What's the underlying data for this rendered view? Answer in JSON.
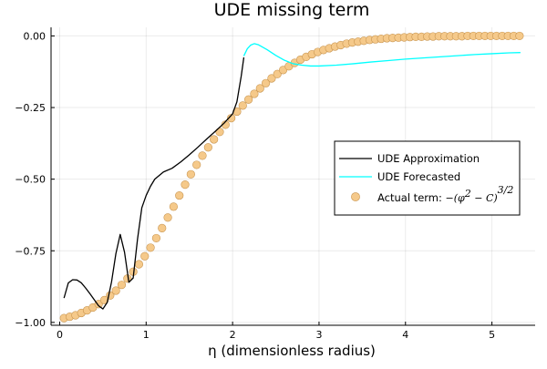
{
  "chart_data": {
    "type": "line",
    "title": "UDE missing term",
    "xlabel": "η (dimensionless radius)",
    "ylabel": "",
    "xlim": [
      -0.1,
      5.5
    ],
    "ylim": [
      -1.01,
      0.03
    ],
    "x_ticks": [
      0,
      1,
      2,
      3,
      4,
      5
    ],
    "y_ticks": [
      0.0,
      -0.25,
      -0.5,
      -0.75,
      -1.0
    ],
    "x_tick_labels": [
      "0",
      "1",
      "2",
      "3",
      "4",
      "5"
    ],
    "y_tick_labels": [
      "0.00",
      "−0.25",
      "−0.50",
      "−0.75",
      "−1.00"
    ],
    "grid": true,
    "legend_position": "right-middle",
    "colors": {
      "approximation": "#000000",
      "forecasted": "#00ffff",
      "actual_fill": "#f5c98a",
      "actual_edge": "#c89550"
    },
    "series": [
      {
        "name": "UDE Approximation",
        "kind": "line",
        "points": [
          [
            0.05,
            -0.915
          ],
          [
            0.1,
            -0.862
          ],
          [
            0.15,
            -0.851
          ],
          [
            0.2,
            -0.852
          ],
          [
            0.25,
            -0.862
          ],
          [
            0.3,
            -0.88
          ],
          [
            0.35,
            -0.9
          ],
          [
            0.4,
            -0.921
          ],
          [
            0.45,
            -0.942
          ],
          [
            0.5,
            -0.953
          ],
          [
            0.55,
            -0.93
          ],
          [
            0.6,
            -0.858
          ],
          [
            0.65,
            -0.76
          ],
          [
            0.7,
            -0.693
          ],
          [
            0.75,
            -0.755
          ],
          [
            0.8,
            -0.86
          ],
          [
            0.85,
            -0.845
          ],
          [
            0.9,
            -0.71
          ],
          [
            0.95,
            -0.6
          ],
          [
            1.0,
            -0.557
          ],
          [
            1.05,
            -0.525
          ],
          [
            1.1,
            -0.5
          ],
          [
            1.2,
            -0.475
          ],
          [
            1.3,
            -0.462
          ],
          [
            1.4,
            -0.44
          ],
          [
            1.5,
            -0.415
          ],
          [
            1.6,
            -0.388
          ],
          [
            1.7,
            -0.36
          ],
          [
            1.8,
            -0.333
          ],
          [
            1.9,
            -0.305
          ],
          [
            2.0,
            -0.272
          ],
          [
            2.05,
            -0.23
          ],
          [
            2.1,
            -0.14
          ],
          [
            2.13,
            -0.075
          ]
        ]
      },
      {
        "name": "UDE Forecasted",
        "kind": "line",
        "points": [
          [
            2.13,
            -0.07
          ],
          [
            2.17,
            -0.045
          ],
          [
            2.21,
            -0.032
          ],
          [
            2.25,
            -0.027
          ],
          [
            2.3,
            -0.031
          ],
          [
            2.4,
            -0.048
          ],
          [
            2.5,
            -0.068
          ],
          [
            2.6,
            -0.085
          ],
          [
            2.7,
            -0.097
          ],
          [
            2.8,
            -0.102
          ],
          [
            2.9,
            -0.105
          ],
          [
            3.0,
            -0.105
          ],
          [
            3.2,
            -0.102
          ],
          [
            3.4,
            -0.097
          ],
          [
            3.6,
            -0.091
          ],
          [
            3.8,
            -0.086
          ],
          [
            4.0,
            -0.081
          ],
          [
            4.2,
            -0.077
          ],
          [
            4.4,
            -0.073
          ],
          [
            4.6,
            -0.069
          ],
          [
            4.8,
            -0.065
          ],
          [
            5.0,
            -0.062
          ],
          [
            5.2,
            -0.059
          ],
          [
            5.33,
            -0.058
          ]
        ]
      },
      {
        "name": "Actual term: −(φ² − C)^(3/2)",
        "kind": "scatter",
        "x_start": 0.05,
        "x_step": 0.0667,
        "values": [
          -0.985,
          -0.98,
          -0.975,
          -0.967,
          -0.958,
          -0.948,
          -0.936,
          -0.922,
          -0.906,
          -0.889,
          -0.869,
          -0.847,
          -0.823,
          -0.797,
          -0.769,
          -0.739,
          -0.706,
          -0.671,
          -0.634,
          -0.596,
          -0.557,
          -0.519,
          -0.483,
          -0.45,
          -0.418,
          -0.389,
          -0.361,
          -0.335,
          -0.31,
          -0.287,
          -0.264,
          -0.243,
          -0.222,
          -0.202,
          -0.183,
          -0.165,
          -0.148,
          -0.133,
          -0.119,
          -0.106,
          -0.094,
          -0.083,
          -0.073,
          -0.064,
          -0.056,
          -0.049,
          -0.043,
          -0.037,
          -0.032,
          -0.027,
          -0.023,
          -0.02,
          -0.017,
          -0.014,
          -0.012,
          -0.01,
          -0.008,
          -0.007,
          -0.006,
          -0.005,
          -0.004,
          -0.003,
          -0.003,
          -0.002,
          -0.002,
          -0.001,
          -0.001,
          -0.001,
          -0.001,
          -0.001,
          0.0,
          0.0,
          0.0,
          0.0,
          0.0,
          0.0,
          0.0,
          0.0,
          0.0,
          0.0
        ]
      }
    ],
    "legend": {
      "entries": [
        "UDE Approximation",
        "UDE Forecasted",
        "Actual term: "
      ],
      "formula": {
        "prefix": "−(φ",
        "sup1": "2",
        "mid": " − C)",
        "sup2": "3/2"
      }
    }
  }
}
